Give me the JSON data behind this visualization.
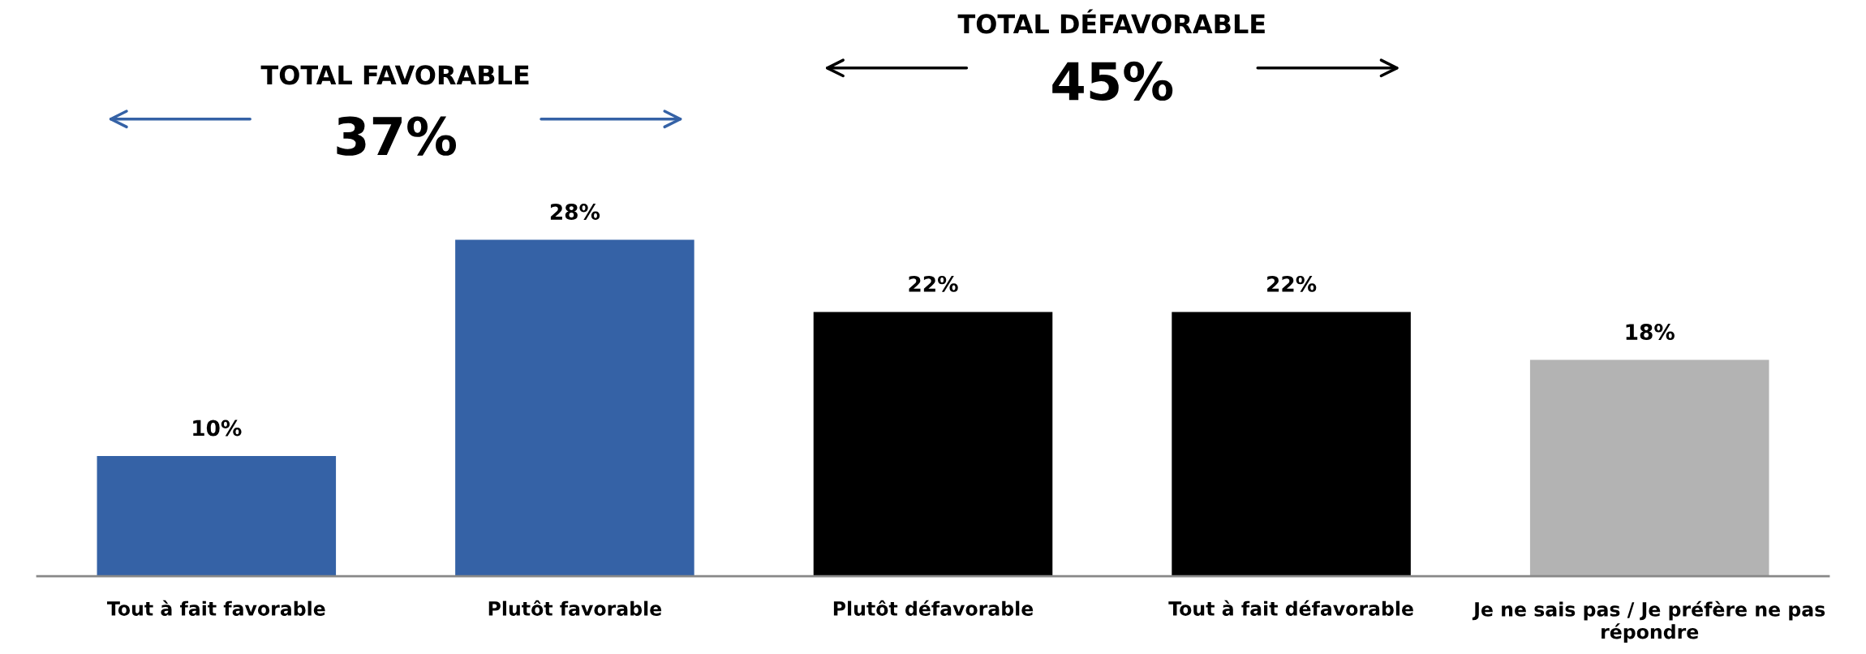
{
  "chart_data": {
    "type": "bar",
    "categories": [
      "Tout à fait favorable",
      "Plutôt favorable",
      "Plutôt défavorable",
      "Tout à fait défavorable",
      "Je ne sais pas / Je préfère ne pas\nrépondre"
    ],
    "values": [
      10,
      28,
      22,
      22,
      18
    ],
    "colors": [
      "#3562a6",
      "#3562a6",
      "#000000",
      "#000000",
      "#b3b3b3"
    ],
    "value_labels": [
      "10%",
      "28%",
      "22%",
      "22%",
      "18%"
    ],
    "annotations": [
      "TOTAL FAVORABLE",
      "37%",
      "TOTAL DÉFAVORABLE",
      "45%"
    ],
    "grid": false,
    "legend": false
  }
}
